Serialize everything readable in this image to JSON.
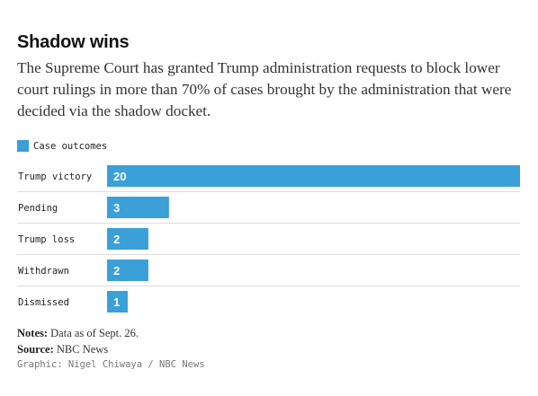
{
  "header": {
    "title": "Shadow wins",
    "subtitle": "The Supreme Court has granted Trump administration requests to block lower court rulings in more than 70% of cases brought by the administration that were decided via the shadow docket."
  },
  "legend": {
    "label": "Case outcomes"
  },
  "colors": {
    "bar": "#3b9fd8",
    "gridline": "#dddddd",
    "bar_label": "#ffffff",
    "category_label": "#222222"
  },
  "chart_data": {
    "type": "bar",
    "orientation": "horizontal",
    "categories": [
      "Trump victory",
      "Pending",
      "Trump loss",
      "Withdrawn",
      "Dismissed"
    ],
    "series": [
      {
        "name": "Case outcomes",
        "values": [
          20,
          3,
          2,
          2,
          1
        ]
      }
    ],
    "xlim": [
      0,
      20
    ],
    "grid": true,
    "legend_position": "top-left",
    "data_labels": true
  },
  "footer": {
    "notes_label": "Notes:",
    "notes_text": "Data as of Sept. 26.",
    "source_label": "Source:",
    "source_text": "NBC News",
    "credit": "Graphic: Nigel Chiwaya / NBC News"
  }
}
